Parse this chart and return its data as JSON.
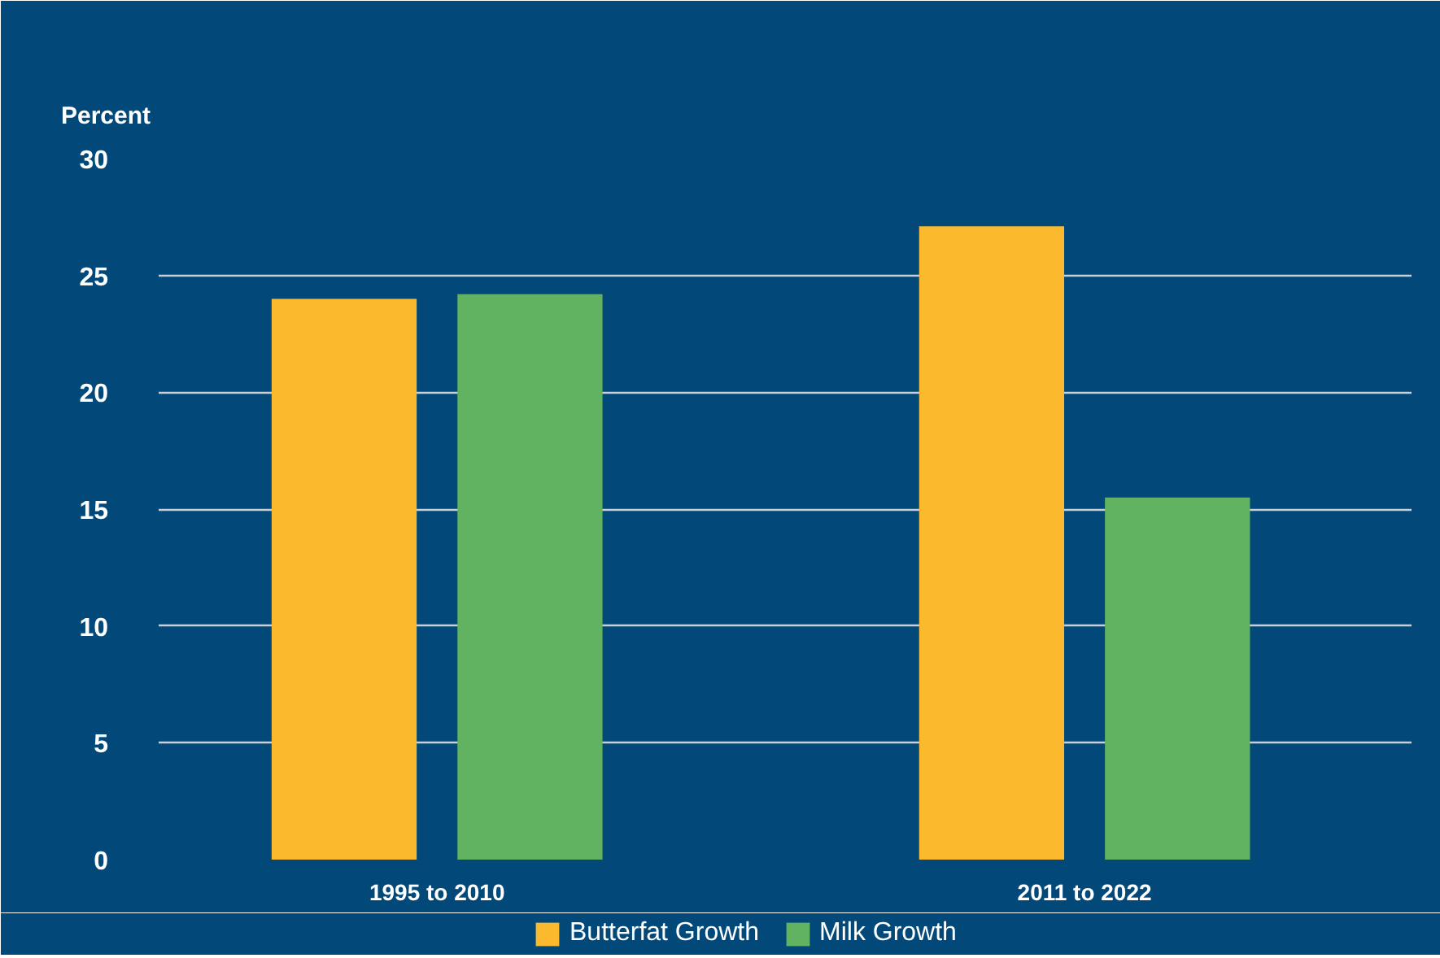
{
  "chart_data": {
    "type": "bar",
    "ylabel": "Percent",
    "categories": [
      "1995 to 2010",
      "2011 to 2022"
    ],
    "series": [
      {
        "name": "Butterfat Growth",
        "color": "#fbb92e",
        "values": [
          24.0,
          27.1
        ]
      },
      {
        "name": "Milk Growth",
        "color": "#62b361",
        "values": [
          24.2,
          15.5
        ]
      }
    ],
    "ylim": [
      0,
      30
    ],
    "yticks": [
      0,
      5,
      10,
      15,
      20,
      25,
      30
    ],
    "grid": "y",
    "legend": "bottom"
  }
}
